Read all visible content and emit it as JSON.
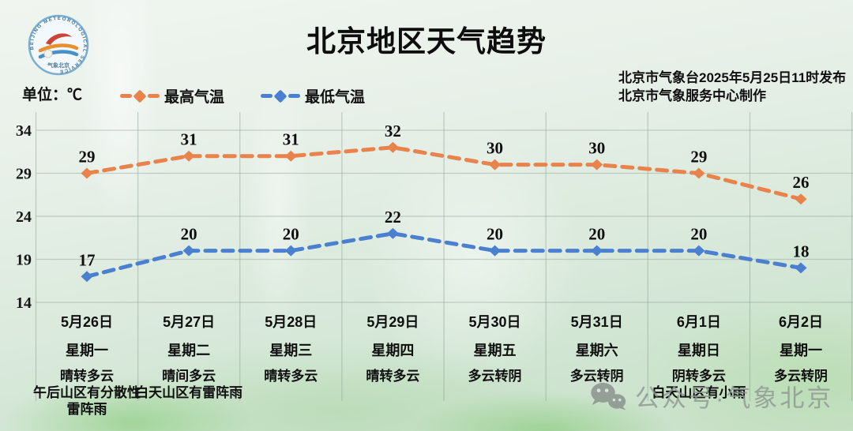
{
  "header": {
    "title": "北京地区天气趋势",
    "unit_label": "单位：℃",
    "publisher_line1": "北京市气象台2025年5月25日11时发布",
    "publisher_line2": "北京市气象服务中心制作",
    "logo_ring_text": "BEIJING METEOROLOGICAL SERVICE",
    "logo_bottom_text": "气象北京"
  },
  "watermark": {
    "icon": "wechat-icon",
    "text": "公众号·气象北京"
  },
  "chart_data": {
    "type": "line",
    "title": "北京地区天气趋势",
    "unit": "℃",
    "line_style": "dashed",
    "marker": "diamond",
    "grid": true,
    "legend_position": "top-left",
    "ylim": [
      14,
      34
    ],
    "yticks": [
      34,
      29,
      24,
      19,
      14
    ],
    "categories": [
      {
        "date": "5月26日",
        "weekday": "星期一",
        "weather": [
          "晴转多云",
          "午后山区有分散性",
          "雷阵雨"
        ]
      },
      {
        "date": "5月27日",
        "weekday": "星期二",
        "weather": [
          "晴间多云",
          "白天山区有雷阵雨"
        ]
      },
      {
        "date": "5月28日",
        "weekday": "星期三",
        "weather": [
          "晴转多云"
        ]
      },
      {
        "date": "5月29日",
        "weekday": "星期四",
        "weather": [
          "晴转多云"
        ]
      },
      {
        "date": "5月30日",
        "weekday": "星期五",
        "weather": [
          "多云转阴"
        ]
      },
      {
        "date": "5月31日",
        "weekday": "星期六",
        "weather": [
          "多云转阴"
        ]
      },
      {
        "date": "6月1日",
        "weekday": "星期日",
        "weather": [
          "阴转多云",
          "白天山区有小雨"
        ]
      },
      {
        "date": "6月2日",
        "weekday": "星期一",
        "weather": [
          "多云转阴"
        ]
      }
    ],
    "series": [
      {
        "name": "最高气温",
        "color": "#e9834c",
        "values": [
          29,
          31,
          31,
          32,
          30,
          30,
          29,
          26
        ]
      },
      {
        "name": "最低气温",
        "color": "#4b7fd0",
        "values": [
          17,
          20,
          20,
          22,
          20,
          20,
          20,
          18
        ]
      }
    ]
  }
}
